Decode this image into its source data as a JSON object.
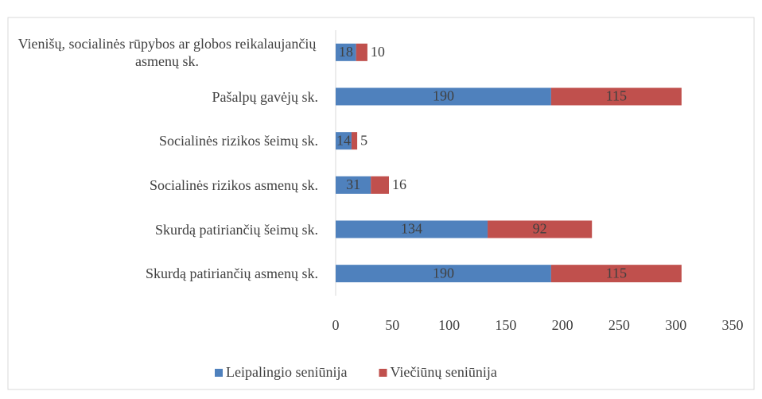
{
  "chart_data": {
    "type": "stacked-barh",
    "categories": [
      "Vienišų, socialinės rūpybos ar globos reikalaujančių asmenų sk.",
      "Pašalpų gavėjų sk.",
      "Socialinės rizikos šeimų sk.",
      "Socialinės rizikos asmenų sk.",
      "Skurdą patiriančių šeimų sk.",
      "Skurdą patiriančių asmenų sk."
    ],
    "series": [
      {
        "name": "Leipalingio seniūnija",
        "color": "#4f81bd",
        "values": [
          18,
          190,
          14,
          31,
          134,
          190
        ]
      },
      {
        "name": "Viečiūnų seniūnija",
        "color": "#c0504d",
        "values": [
          10,
          115,
          5,
          16,
          92,
          115
        ]
      }
    ],
    "xlim": [
      0,
      350
    ],
    "xticks": [
      0,
      50,
      100,
      150,
      200,
      250,
      300,
      350
    ],
    "legend": "bottom"
  }
}
